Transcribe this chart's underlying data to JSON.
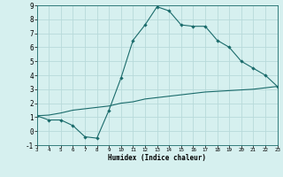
{
  "title": "",
  "xlabel": "Humidex (Indice chaleur)",
  "background_color": "#d6f0ef",
  "grid_color": "#b8dada",
  "line_color": "#1a6b6b",
  "marker_color": "#1a6b6b",
  "xlim": [
    3,
    23
  ],
  "ylim": [
    -1,
    9
  ],
  "xticks": [
    3,
    4,
    5,
    6,
    7,
    8,
    9,
    10,
    11,
    12,
    13,
    14,
    15,
    16,
    17,
    18,
    19,
    20,
    21,
    22,
    23
  ],
  "yticks": [
    -1,
    0,
    1,
    2,
    3,
    4,
    5,
    6,
    7,
    8,
    9
  ],
  "series1_x": [
    3,
    4,
    5,
    6,
    7,
    8,
    9,
    10,
    11,
    12,
    13,
    14,
    15,
    16,
    17,
    18,
    19,
    20,
    21,
    22,
    23
  ],
  "series1_y": [
    1.1,
    0.8,
    0.8,
    0.4,
    -0.4,
    -0.5,
    1.5,
    3.8,
    6.5,
    7.6,
    8.9,
    8.6,
    7.6,
    7.5,
    7.5,
    6.5,
    6.0,
    5.0,
    4.5,
    4.0,
    3.2
  ],
  "series2_x": [
    3,
    4,
    5,
    6,
    7,
    8,
    9,
    10,
    11,
    12,
    13,
    14,
    15,
    16,
    17,
    18,
    19,
    20,
    21,
    22,
    23
  ],
  "series2_y": [
    1.1,
    1.15,
    1.3,
    1.5,
    1.6,
    1.7,
    1.8,
    2.0,
    2.1,
    2.3,
    2.4,
    2.5,
    2.6,
    2.7,
    2.8,
    2.85,
    2.9,
    2.95,
    3.0,
    3.1,
    3.2
  ]
}
